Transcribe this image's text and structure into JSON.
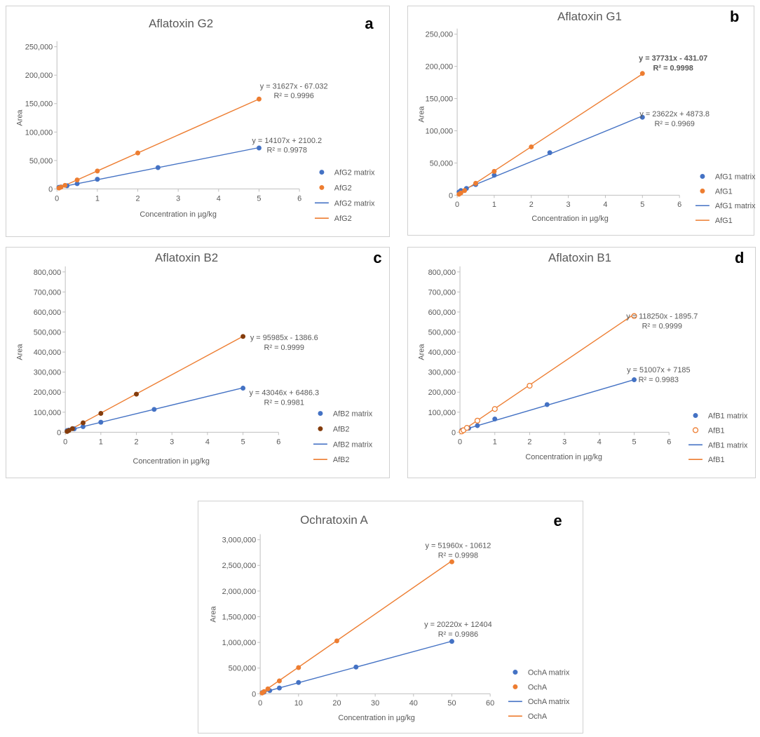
{
  "colors": {
    "matrix": "#4472C4",
    "solvent": "#ED7D31",
    "solvent_c": "#843C0C",
    "axis": "#BFBFBF",
    "text": "#595959"
  },
  "chart_data": [
    {
      "id": "a",
      "type": "scatter",
      "title": "Aflatoxin G2",
      "panel_label": "a",
      "xlabel": "Concentration in µg/kg",
      "ylabel": "Area",
      "xlim": [
        0,
        6
      ],
      "ylim": [
        0,
        250000
      ],
      "x_ticks": [
        "0",
        "1",
        "2",
        "3",
        "4",
        "5",
        "6"
      ],
      "y_ticks": [
        "0",
        "50,000",
        "100,000",
        "150,000",
        "200,000",
        "250,000"
      ],
      "series": [
        {
          "name": "AfG2 matrix",
          "marker": "filled",
          "x": [
            0.05,
            0.1,
            0.25,
            0.5,
            1,
            2.5,
            5
          ],
          "y": [
            2800,
            3500,
            5600,
            9200,
            17000,
            37500,
            72000
          ],
          "fit": {
            "slope": 14107,
            "intercept": 2100.2,
            "equation": "y = 14107x + 2100.2",
            "r2": "R² = 0.9978"
          }
        },
        {
          "name": "AfG2",
          "marker": "filled",
          "x": [
            0.05,
            0.1,
            0.2,
            0.5,
            1,
            2,
            5
          ],
          "y": [
            1500,
            3100,
            6300,
            15800,
            31500,
            63200,
            158000
          ],
          "fit": {
            "slope": 31627,
            "intercept": -67.032,
            "equation": "y = 31627x - 67.032",
            "r2": "R² = 0.9996"
          }
        }
      ],
      "legend": [
        "AfG2 matrix",
        "AfG2",
        "AfG2 matrix",
        "AfG2"
      ]
    },
    {
      "id": "b",
      "type": "scatter",
      "title": "Aflatoxin G1",
      "panel_label": "b",
      "xlabel": "Concentration in µg/kg",
      "ylabel": "Area",
      "xlim": [
        0,
        6
      ],
      "ylim": [
        0,
        250000
      ],
      "x_ticks": [
        "0",
        "1",
        "2",
        "3",
        "4",
        "5",
        "6"
      ],
      "y_ticks": [
        "0",
        "50,000",
        "100,000",
        "150,000",
        "200,000",
        "250,000"
      ],
      "series": [
        {
          "name": "AfG1 matrix",
          "marker": "filled",
          "x": [
            0.05,
            0.1,
            0.25,
            0.5,
            1,
            2.5,
            5
          ],
          "y": [
            5000,
            7200,
            10500,
            16500,
            31000,
            66000,
            121000
          ],
          "fit": {
            "slope": 23622,
            "intercept": 4873.8,
            "equation": "y = 23622x + 4873.8",
            "r2": "R² = 0.9969"
          }
        },
        {
          "name": "AfG1",
          "marker": "filled",
          "x": [
            0.05,
            0.1,
            0.2,
            0.5,
            1,
            2,
            5
          ],
          "y": [
            1500,
            3400,
            7200,
            18500,
            37000,
            75000,
            189000
          ],
          "fit": {
            "slope": 37731,
            "intercept": -431.07,
            "equation": "y = 37731x - 431.07",
            "r2": "R² = 0.9998"
          }
        }
      ],
      "legend": [
        "AfG1 matrix",
        "AfG1",
        "AfG1 matrix",
        "AfG1"
      ]
    },
    {
      "id": "c",
      "type": "scatter",
      "title": "Aflatoxin B2",
      "panel_label": "c",
      "xlabel": "Concentration in µg/kg",
      "ylabel": "Area",
      "xlim": [
        0,
        6
      ],
      "ylim": [
        0,
        800000
      ],
      "x_ticks": [
        "0",
        "1",
        "2",
        "3",
        "4",
        "5",
        "6"
      ],
      "y_ticks": [
        "0",
        "100,000",
        "200,000",
        "300,000",
        "400,000",
        "500,000",
        "600,000",
        "700,000",
        "800,000"
      ],
      "series": [
        {
          "name": "AfB2 matrix",
          "marker": "filled",
          "x": [
            0.05,
            0.1,
            0.25,
            0.5,
            1,
            2.5,
            5
          ],
          "y": [
            8500,
            10500,
            17000,
            28000,
            50000,
            114000,
            220000
          ],
          "fit": {
            "slope": 43046,
            "intercept": 6486.3,
            "equation": "y = 43046x + 6486.3",
            "r2": "R² = 0.9981"
          }
        },
        {
          "name": "AfB2",
          "marker": "filled",
          "x": [
            0.05,
            0.1,
            0.2,
            0.5,
            1,
            2,
            5
          ],
          "y": [
            4000,
            8500,
            18000,
            47000,
            94000,
            190000,
            478000
          ],
          "fit": {
            "slope": 95985,
            "intercept": -1386.6,
            "equation": "y = 95985x - 1386.6",
            "r2": "R² = 0.9999"
          }
        }
      ],
      "legend": [
        "AfB2 matrix",
        "AfB2",
        "AfB2 matrix",
        "AfB2"
      ]
    },
    {
      "id": "d",
      "type": "scatter",
      "title": "Aflatoxin B1",
      "panel_label": "d",
      "xlabel": "Concentration in  µg/kg",
      "ylabel": "Area",
      "xlim": [
        0,
        6
      ],
      "ylim": [
        0,
        800000
      ],
      "x_ticks": [
        "0",
        "1",
        "2",
        "3",
        "4",
        "5",
        "6"
      ],
      "y_ticks": [
        "0",
        "100,000",
        "200,000",
        "300,000",
        "400,000",
        "500,000",
        "600,000",
        "700,000",
        "800,000"
      ],
      "series": [
        {
          "name": "AfB1 matrix",
          "marker": "filled",
          "x": [
            0.05,
            0.1,
            0.25,
            0.5,
            1,
            2.5,
            5
          ],
          "y": [
            9500,
            12000,
            20000,
            33000,
            66000,
            138000,
            262000
          ],
          "fit": {
            "slope": 51007,
            "intercept": 7185,
            "equation": "y = 51007x + 7185",
            "r2": "R² = 0.9983"
          }
        },
        {
          "name": "AfB1",
          "marker": "open",
          "x": [
            0.05,
            0.1,
            0.2,
            0.5,
            1,
            2,
            5
          ],
          "y": [
            4000,
            10000,
            22000,
            58000,
            116000,
            232000,
            580000
          ],
          "fit": {
            "slope": 118250,
            "intercept": -1895.7,
            "equation": "y = 118250x - 1895.7",
            "r2": "R² = 0.9999"
          }
        }
      ],
      "legend": [
        "AfB1 matrix",
        "AfB1",
        "AfB1 matrix",
        "AfB1"
      ]
    },
    {
      "id": "e",
      "type": "scatter",
      "title": "Ochratoxin A",
      "panel_label": "e",
      "xlabel": "Concentration in µg/kg",
      "ylabel": "Area",
      "xlim": [
        0,
        60
      ],
      "ylim": [
        0,
        3000000
      ],
      "x_ticks": [
        "0",
        "10",
        "20",
        "30",
        "40",
        "50",
        "60"
      ],
      "y_ticks": [
        "0",
        "500,000",
        "1,000,000",
        "1,500,000",
        "2,000,000",
        "2,500,000",
        "3,000,000"
      ],
      "series": [
        {
          "name": "OchA matrix",
          "marker": "filled",
          "x": [
            0.5,
            1,
            2.5,
            5,
            10,
            25,
            50
          ],
          "y": [
            22000,
            32000,
            62000,
            112000,
            220000,
            520000,
            1020000
          ],
          "fit": {
            "slope": 20220,
            "intercept": 12404,
            "equation": "y = 20220x + 12404",
            "r2": "R² = 0.9986"
          }
        },
        {
          "name": "OchA",
          "marker": "filled",
          "x": [
            0.5,
            1,
            2,
            5,
            10,
            20,
            50
          ],
          "y": [
            15000,
            42000,
            95000,
            250000,
            510000,
            1030000,
            2570000
          ],
          "fit": {
            "slope": 51960,
            "intercept": -10612,
            "equation": "y = 51960x - 10612",
            "r2": "R² = 0.9998"
          }
        }
      ],
      "legend": [
        "OchA matrix",
        "OchA",
        "OchA matrix",
        "OchA"
      ]
    }
  ]
}
